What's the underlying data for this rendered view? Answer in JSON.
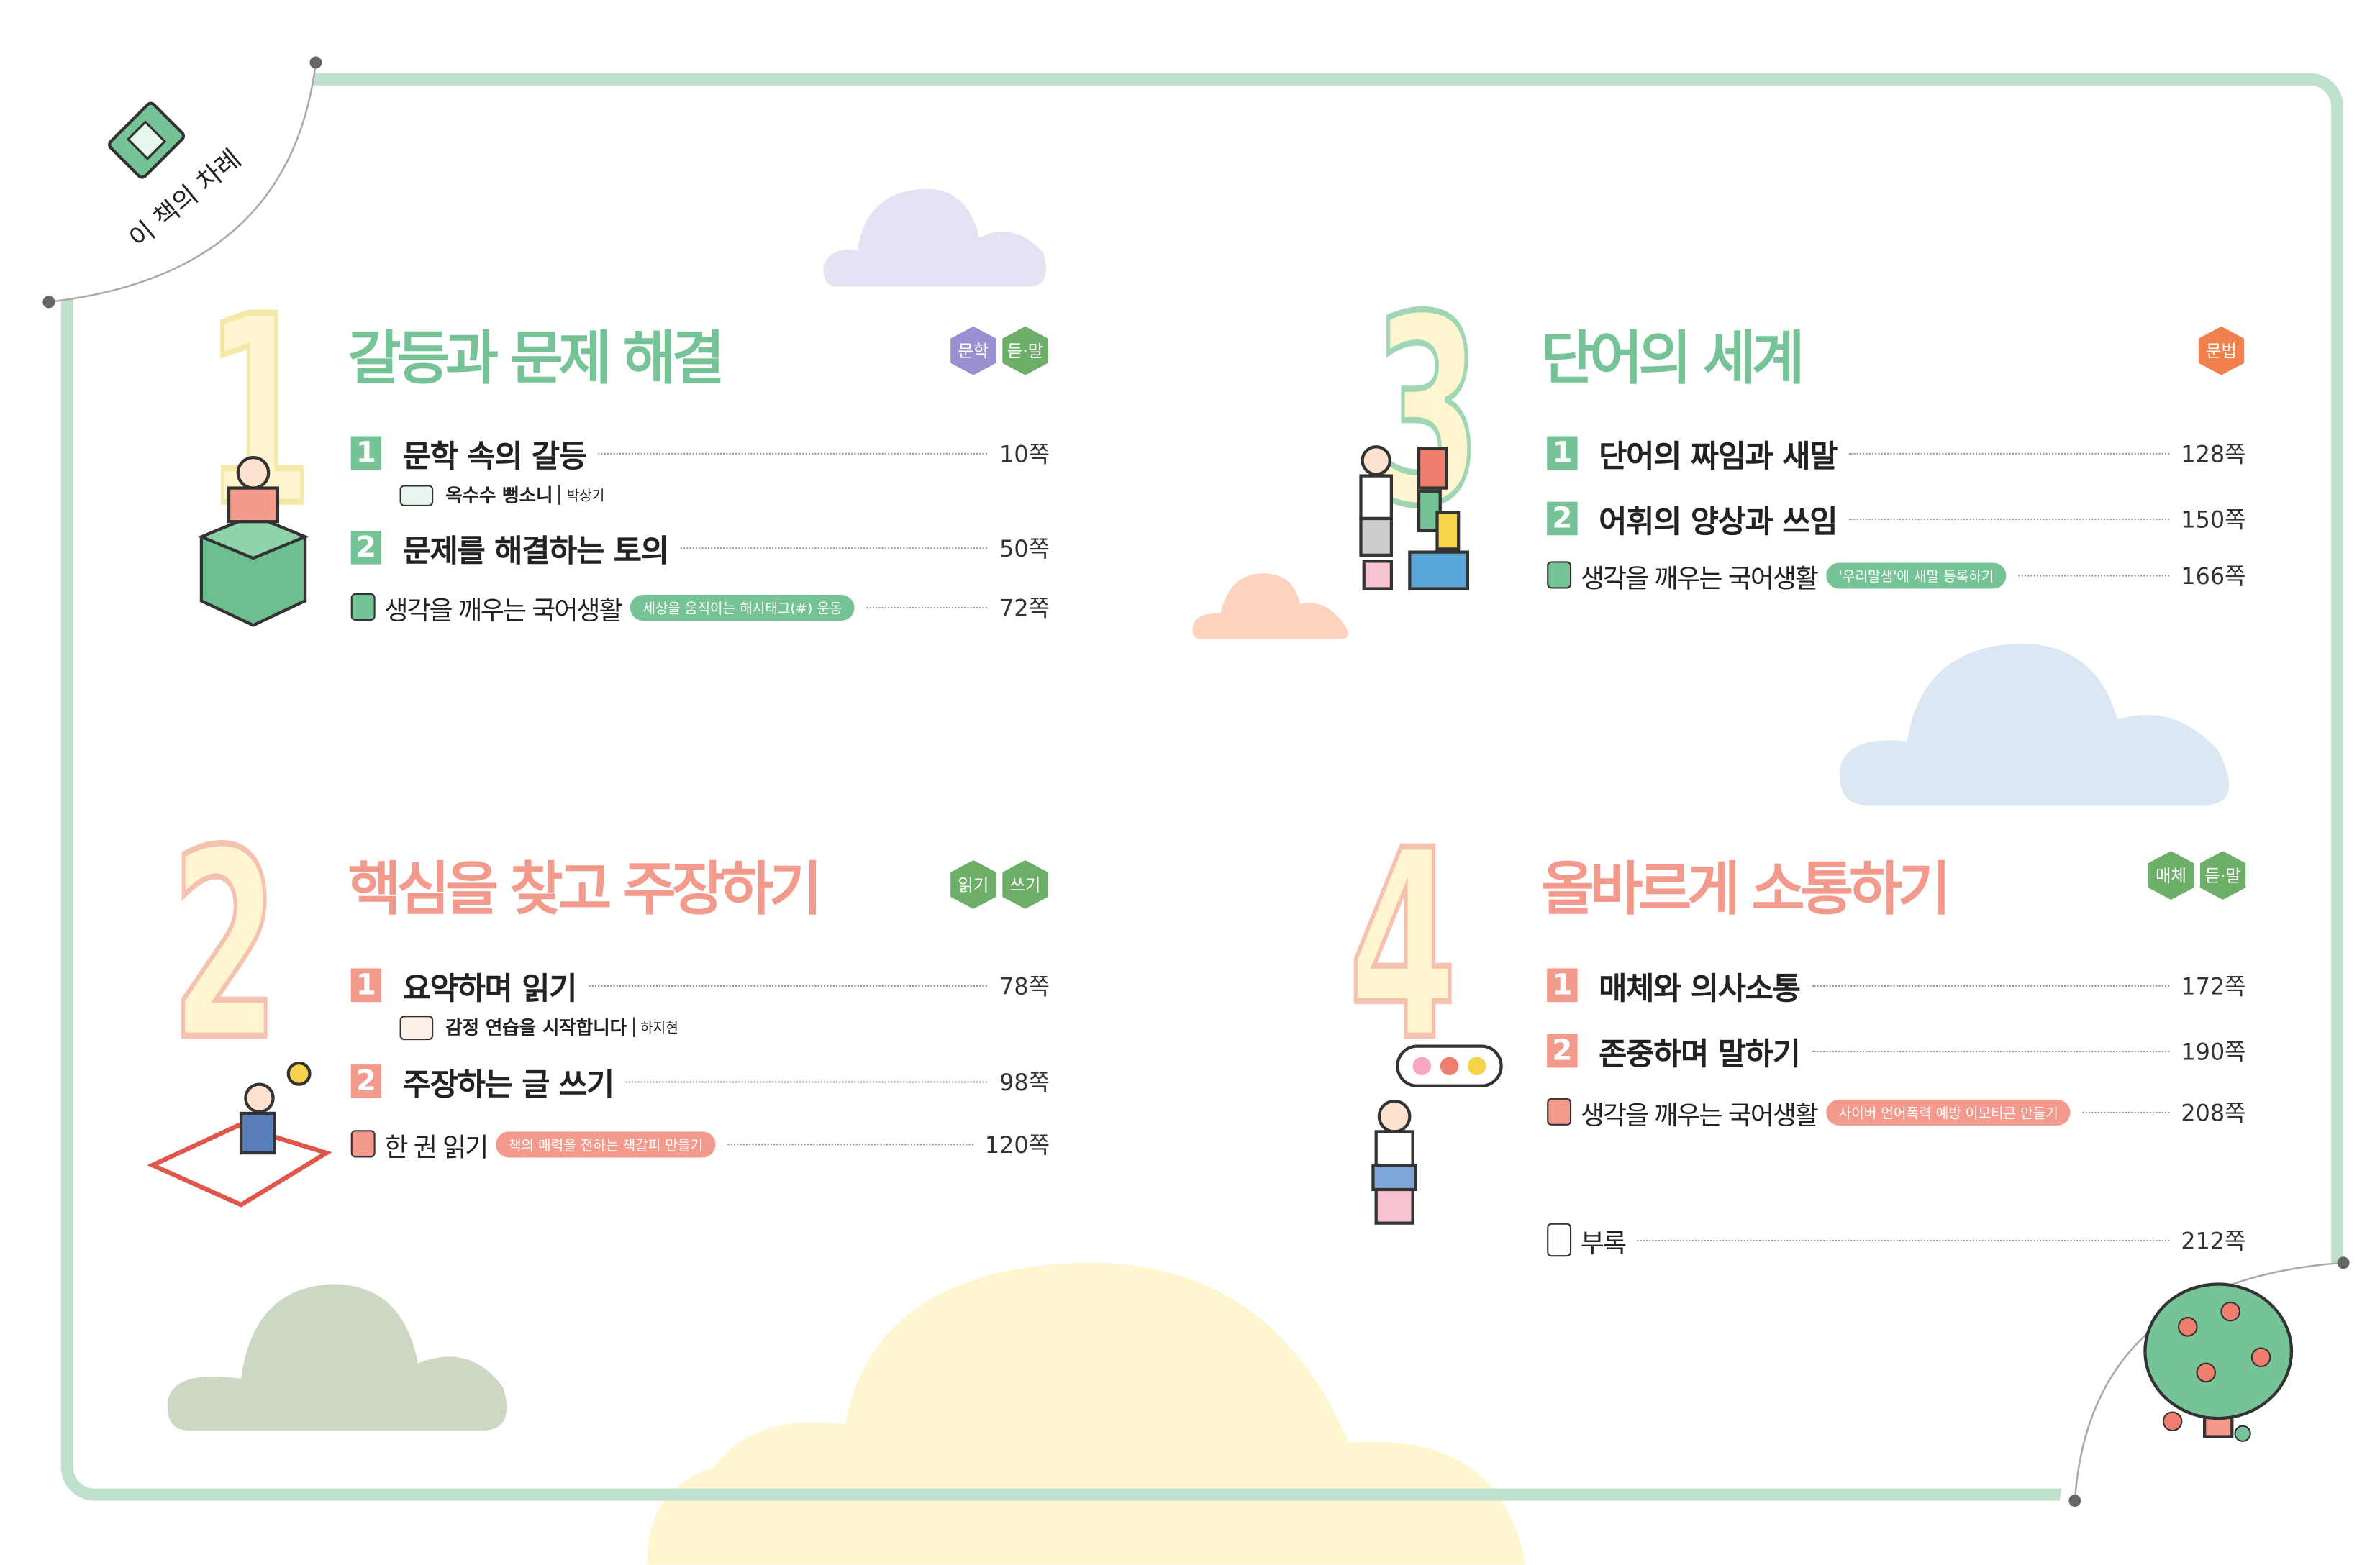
{
  "header": {
    "label": "이 책의 차례"
  },
  "colors": {
    "green": "#76c397",
    "pink": "#f39a8c",
    "yellow": "#fff6cf",
    "frame": "#bfe0cb",
    "purple": "#9a8fd0"
  },
  "units": [
    {
      "number": "1",
      "title": "갈등과 문제 해결",
      "tags": [
        "문학",
        "듣·말"
      ],
      "items": [
        {
          "no": "1",
          "label": "문학 속의 갈등",
          "page": "10쪽",
          "reading": {
            "title": "옥수수 뻥소니",
            "author": "박상기"
          }
        },
        {
          "no": "2",
          "label": "문제를 해결하는 토의",
          "page": "50쪽"
        }
      ],
      "life": {
        "label": "생각을 깨우는 국어생활",
        "pill": "세상을 움직이는 해시태그(#) 운동",
        "page": "72쪽"
      }
    },
    {
      "number": "2",
      "title": "핵심을 찾고 주장하기",
      "tags": [
        "읽기",
        "쓰기"
      ],
      "items": [
        {
          "no": "1",
          "label": "요약하며 읽기",
          "page": "78쪽",
          "reading": {
            "title": "감정 연습을 시작합니다",
            "author": "하지현"
          }
        },
        {
          "no": "2",
          "label": "주장하는 글 쓰기",
          "page": "98쪽"
        }
      ],
      "life": {
        "label": "한 권 읽기",
        "pill": "책의 매력을 전하는 책갈피 만들기",
        "page": "120쪽"
      }
    },
    {
      "number": "3",
      "title": "단어의 세계",
      "tags": [
        "문법"
      ],
      "items": [
        {
          "no": "1",
          "label": "단어의 짜임과 새말",
          "page": "128쪽"
        },
        {
          "no": "2",
          "label": "어휘의 양상과 쓰임",
          "page": "150쪽"
        }
      ],
      "life": {
        "label": "생각을 깨우는 국어생활",
        "pill": "'우리말샘'에 새말 등록하기",
        "page": "166쪽"
      }
    },
    {
      "number": "4",
      "title": "올바르게 소통하기",
      "tags": [
        "매체",
        "듣·말"
      ],
      "items": [
        {
          "no": "1",
          "label": "매체와 의사소통",
          "page": "172쪽"
        },
        {
          "no": "2",
          "label": "존중하며 말하기",
          "page": "190쪽"
        }
      ],
      "life": {
        "label": "생각을 깨우는 국어생활",
        "pill": "사이버 언어폭력 예방 이모티콘 만들기",
        "page": "208쪽"
      }
    }
  ],
  "appendix": {
    "label": "부록",
    "page": "212쪽"
  }
}
